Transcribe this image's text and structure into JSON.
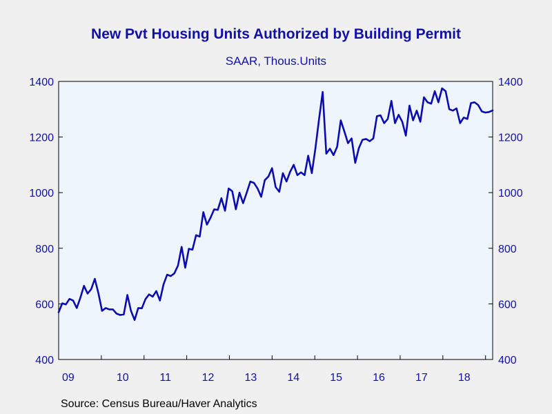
{
  "chart_data": {
    "type": "line",
    "title": "New Pvt Housing Units Authorized by Building Permit",
    "subtitle": "SAAR, Thous.Units",
    "source": "Source:  Census Bureau/Haver Analytics",
    "xlabel": "",
    "ylabel": "",
    "x_start": "2009-01",
    "x_end": "2019-03",
    "x_tick_labels": [
      "09",
      "10",
      "11",
      "12",
      "13",
      "14",
      "15",
      "16",
      "17",
      "18"
    ],
    "ylim": [
      400,
      1400
    ],
    "y_ticks": [
      400,
      600,
      800,
      1000,
      1200,
      1400
    ],
    "y_axis_both_sides": true,
    "grid": false,
    "colors": {
      "line": "#0b0bb0",
      "plot_bg": "#eef5fc",
      "text": "#1010a8",
      "page_bg": "#f0f0f0"
    },
    "series": [
      {
        "values": [
          570,
          602,
          598,
          618,
          612,
          585,
          622,
          665,
          637,
          653,
          690,
          638,
          575,
          585,
          580,
          580,
          565,
          560,
          562,
          632,
          575,
          542,
          585,
          584,
          617,
          634,
          626,
          646,
          612,
          670,
          705,
          700,
          710,
          738,
          805,
          730,
          798,
          795,
          847,
          842,
          930,
          885,
          910,
          940,
          938,
          980,
          935,
          1015,
          1005,
          940,
          1000,
          962,
          1000,
          1040,
          1035,
          1015,
          985,
          1045,
          1058,
          1088,
          1020,
          1003,
          1070,
          1040,
          1075,
          1100,
          1063,
          1073,
          1063,
          1133,
          1070,
          1160,
          1265,
          1362,
          1140,
          1158,
          1135,
          1165,
          1260,
          1220,
          1178,
          1195,
          1107,
          1160,
          1190,
          1193,
          1185,
          1195,
          1275,
          1278,
          1250,
          1265,
          1330,
          1250,
          1280,
          1255,
          1205,
          1313,
          1260,
          1295,
          1255,
          1343,
          1325,
          1320,
          1365,
          1325,
          1375,
          1365,
          1300,
          1295,
          1303,
          1250,
          1270,
          1265,
          1322,
          1325,
          1315,
          1292,
          1288,
          1290,
          1296
        ]
      }
    ]
  }
}
